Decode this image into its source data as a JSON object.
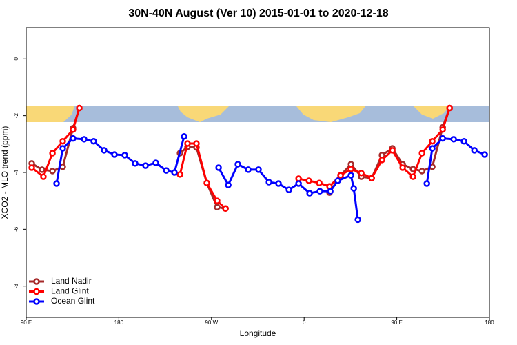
{
  "chart_data": {
    "type": "line",
    "title": "30N-40N August (Ver 10)   2015-01-01 to 2020-12-18",
    "x_label": "Longitude",
    "y_label": "XCO2 - MLO trend (ppm)",
    "xlim": [
      90,
      540
    ],
    "ylim": [
      -9.1,
      1.1
    ],
    "xticks": [
      {
        "value": 90,
        "label": "90 E"
      },
      180,
      {
        "value": 270,
        "label": "90 W"
      },
      {
        "value": 360,
        "label": "0"
      },
      {
        "value": 450,
        "label": "90 E"
      },
      {
        "value": 540,
        "label": "180"
      }
    ],
    "yticks": [
      0,
      -2,
      -4,
      -6,
      -8
    ],
    "legend": "bottom-left",
    "series": [
      {
        "name": "Land Nadir",
        "color": "#a52a2a",
        "x": [
          95.4,
          105.4,
          115.5,
          125.5,
          135.5,
          141.6,
          null,
          239.4,
          246.7,
          255.4,
          265.5,
          275.5,
          283.6,
          null,
          384.7,
          395.4,
          405.5,
          415.5,
          425.6,
          435.6,
          445.7,
          455.7,
          465.8,
          474.5,
          484.5,
          494.6,
          501.3
        ],
        "values": [
          -3.68,
          -3.9,
          -3.95,
          -3.8,
          -2.44,
          -1.73,
          null,
          -3.32,
          -3.1,
          -3.12,
          -4.37,
          -5.22,
          -5.27,
          null,
          -4.71,
          -4.1,
          -3.71,
          -4.15,
          -4.2,
          -3.39,
          -3.15,
          -3.71,
          -3.88,
          -3.95,
          -3.8,
          -2.41,
          -1.73
        ]
      },
      {
        "name": "Land Glint",
        "color": "#ff0000",
        "x": [
          95.4,
          106.7,
          115.5,
          125.5,
          135.5,
          141.6,
          null,
          239.4,
          246.7,
          255.4,
          265.5,
          275.5,
          283.6,
          null,
          354.6,
          364.6,
          374.7,
          384.7,
          395.4,
          405.5,
          415.5,
          425.6,
          435.6,
          445.7,
          455.7,
          465.8,
          474.5,
          484.5,
          494.6,
          501.3
        ],
        "values": [
          -3.83,
          -4.15,
          -3.32,
          -2.9,
          -2.49,
          -1.73,
          null,
          -4.07,
          -2.98,
          -2.98,
          -4.37,
          -5.0,
          -5.27,
          null,
          -4.22,
          -4.29,
          -4.37,
          -4.49,
          -4.1,
          -3.88,
          -4.02,
          -4.2,
          -3.56,
          -3.22,
          -3.83,
          -4.15,
          -3.32,
          -2.9,
          -2.49,
          -1.73
        ]
      },
      {
        "name": "Ocean Glint",
        "color": "#0000ff",
        "x": [
          119.5,
          125.5,
          135.5,
          146.3,
          155.6,
          165.7,
          175.7,
          185.8,
          195.8,
          205.9,
          215.9,
          226,
          234,
          243.4,
          null,
          276.9,
          286.3,
          295.6,
          305.7,
          315.7,
          325.8,
          335.1,
          345.2,
          354.6,
          365.3,
          375.3,
          385.4,
          392.7,
          405.5,
          408.2,
          412.2,
          null,
          479.2,
          484.5,
          494.6,
          505.3,
          515.3,
          525.4,
          535.4
        ],
        "values": [
          -4.39,
          -3.15,
          -2.8,
          -2.83,
          -2.9,
          -3.22,
          -3.37,
          -3.39,
          -3.68,
          -3.76,
          -3.66,
          -3.93,
          -4.0,
          -2.73,
          null,
          -3.83,
          -4.44,
          -3.71,
          -3.9,
          -3.9,
          -4.34,
          -4.39,
          -4.61,
          -4.39,
          -4.73,
          -4.66,
          -4.66,
          -4.29,
          -4.1,
          -4.56,
          -5.66,
          null,
          -4.39,
          -3.15,
          -2.8,
          -2.83,
          -2.9,
          -3.22,
          -3.37
        ]
      }
    ]
  }
}
